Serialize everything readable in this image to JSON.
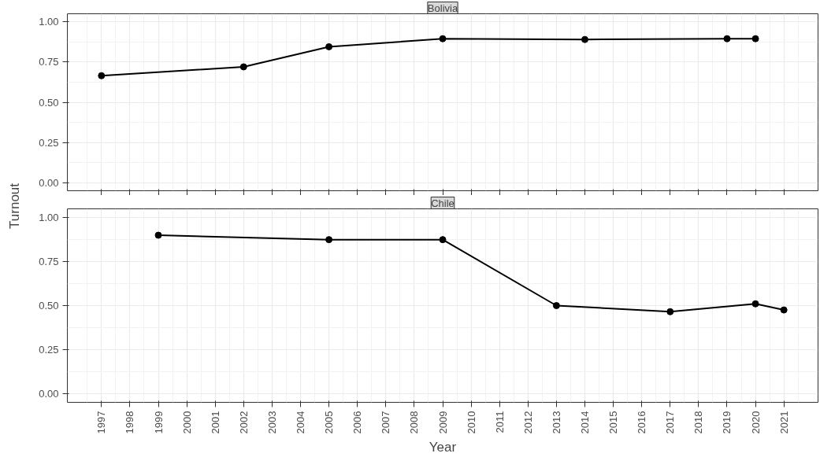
{
  "chart_data": [
    {
      "type": "line",
      "title": "Bolivia",
      "ylabel": "Turnout",
      "x": [
        1997,
        2002,
        2005,
        2009,
        2014,
        2019,
        2020
      ],
      "values": [
        0.665,
        0.72,
        0.845,
        0.895,
        0.89,
        0.895,
        0.895
      ],
      "color": "#000000",
      "marker": "circle",
      "xlim": [
        1995.8,
        2022.2
      ],
      "ylim": [
        -0.05,
        1.05
      ],
      "xticks": [
        1997,
        1998,
        1999,
        2000,
        2001,
        2002,
        2003,
        2004,
        2005,
        2006,
        2007,
        2008,
        2009,
        2010,
        2011,
        2012,
        2013,
        2014,
        2015,
        2016,
        2017,
        2018,
        2019,
        2020,
        2021
      ],
      "yticks": [
        {
          "value": 0,
          "label": "0.00"
        },
        {
          "value": 0.25,
          "label": "0.25"
        },
        {
          "value": 0.5,
          "label": "0.50"
        },
        {
          "value": 0.75,
          "label": "0.75"
        },
        {
          "value": 1,
          "label": "1.00"
        }
      ],
      "grid": true,
      "tick_labels": "y"
    },
    {
      "type": "line",
      "title": "Chile",
      "xlabel": "Year",
      "x": [
        1999,
        2005,
        2009,
        2013,
        2017,
        2020,
        2021
      ],
      "values": [
        0.9,
        0.875,
        0.875,
        0.5,
        0.465,
        0.51,
        0.475
      ],
      "color": "#000000",
      "marker": "circle",
      "xlim": [
        1995.8,
        2022.2
      ],
      "ylim": [
        -0.05,
        1.05
      ],
      "xticks": [
        1997,
        1998,
        1999,
        2000,
        2001,
        2002,
        2003,
        2004,
        2005,
        2006,
        2007,
        2008,
        2009,
        2010,
        2011,
        2012,
        2013,
        2014,
        2015,
        2016,
        2017,
        2018,
        2019,
        2020,
        2021
      ],
      "yticks": [
        {
          "value": 0,
          "label": "0.00"
        },
        {
          "value": 0.25,
          "label": "0.25"
        },
        {
          "value": 0.5,
          "label": "0.50"
        },
        {
          "value": 0.75,
          "label": "0.75"
        },
        {
          "value": 1,
          "label": "1.00"
        }
      ],
      "grid": true
    }
  ]
}
